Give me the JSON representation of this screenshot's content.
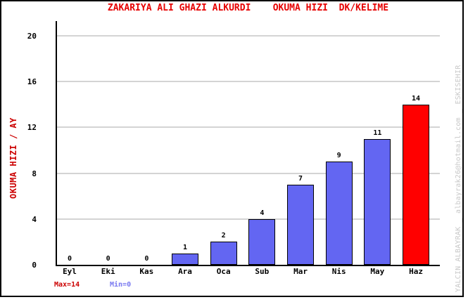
{
  "window": {
    "background": "#ffffff",
    "frame_color": "#000000"
  },
  "chart_data": {
    "type": "bar",
    "title": "ZAKARIYA ALI GHAZI ALKURDI    OKUMA HIZI  DK/KELIME",
    "categories": [
      "Eyl",
      "Eki",
      "Kas",
      "Ara",
      "Oca",
      "Sub",
      "Mar",
      "Nis",
      "May",
      "Haz"
    ],
    "values": [
      0,
      0,
      0,
      1,
      2,
      4,
      7,
      9,
      11,
      14
    ],
    "bar_colors": [
      "#6366f2",
      "#6366f2",
      "#6366f2",
      "#6366f2",
      "#6366f2",
      "#6366f2",
      "#6366f2",
      "#6366f2",
      "#6366f2",
      "#ff0000"
    ],
    "value_labels": [
      "0",
      "0",
      "0",
      "1",
      "2",
      "4",
      "7",
      "9",
      "11",
      "14"
    ],
    "xlabel": "",
    "ylabel": "OKUMA HIZI / AY",
    "yticks": [
      0,
      4,
      8,
      12,
      16,
      20
    ],
    "ylim": [
      0,
      20
    ],
    "grid": true,
    "legend": false
  },
  "footer": {
    "max_label": "Max=14",
    "min_label": "Min=0"
  },
  "watermark": {
    "text": "YALCIN ALBAYRAK _ albayrak26@hotmail.com _ ESKISEHIR"
  },
  "colors": {
    "title": "#e60000",
    "ylabel": "#cc0000",
    "max": "#cc0000",
    "min": "#7878f0",
    "axis": "#000000",
    "grid": "#d4d4d4",
    "bar_default": "#6366f2",
    "bar_highlight": "#ff0000",
    "watermark": "#c8c8c8",
    "text": "#000000",
    "frame": "#000000"
  }
}
